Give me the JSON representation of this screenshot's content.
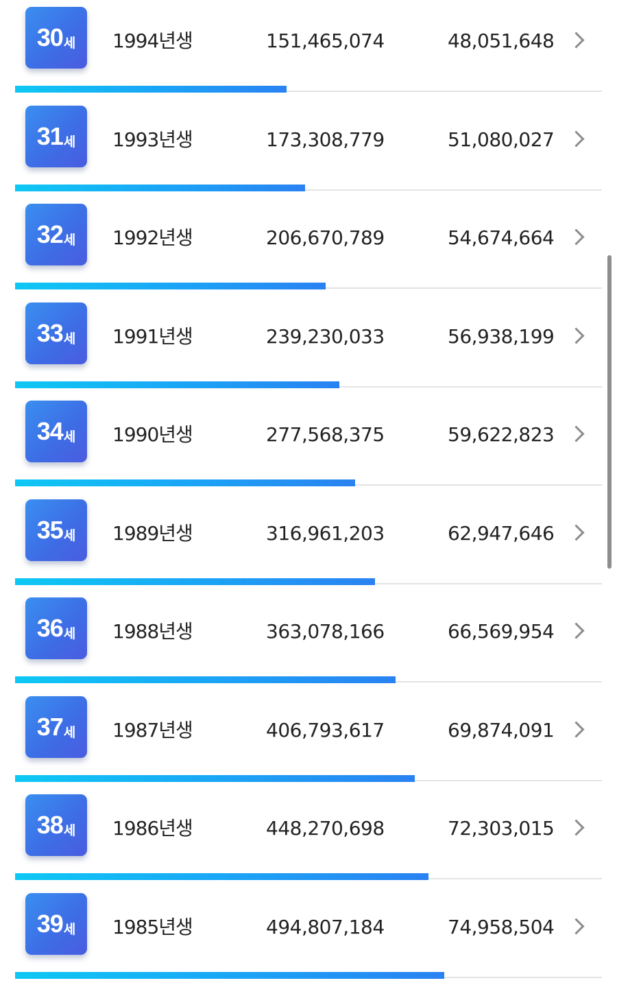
{
  "unit_label": "세",
  "rows": [
    {
      "age": "30",
      "birth_year": "1994년생",
      "total": "151,465,074",
      "annual": "48,051,648",
      "bar_fraction": 0.463
    },
    {
      "age": "31",
      "birth_year": "1993년생",
      "total": "173,308,779",
      "annual": "51,080,027",
      "bar_fraction": 0.494
    },
    {
      "age": "32",
      "birth_year": "1992년생",
      "total": "206,670,789",
      "annual": "54,674,664",
      "bar_fraction": 0.529
    },
    {
      "age": "33",
      "birth_year": "1991년생",
      "total": "239,230,033",
      "annual": "56,938,199",
      "bar_fraction": 0.553
    },
    {
      "age": "34",
      "birth_year": "1990년생",
      "total": "277,568,375",
      "annual": "59,622,823",
      "bar_fraction": 0.58
    },
    {
      "age": "35",
      "birth_year": "1989년생",
      "total": "316,961,203",
      "annual": "62,947,646",
      "bar_fraction": 0.613
    },
    {
      "age": "36",
      "birth_year": "1988년생",
      "total": "363,078,166",
      "annual": "66,569,954",
      "bar_fraction": 0.648
    },
    {
      "age": "37",
      "birth_year": "1987년생",
      "total": "406,793,617",
      "annual": "69,874,091",
      "bar_fraction": 0.681
    },
    {
      "age": "38",
      "birth_year": "1986년생",
      "total": "448,270,698",
      "annual": "72,303,015",
      "bar_fraction": 0.705
    },
    {
      "age": "39",
      "birth_year": "1985년생",
      "total": "494,807,184",
      "annual": "74,958,504",
      "bar_fraction": 0.731
    }
  ],
  "icons": {
    "row_chevron": "chevron-right-icon"
  },
  "colors": {
    "badge_gradient_start": "#3a8ff0",
    "badge_gradient_end": "#4a5ce0",
    "bar_gradient_start": "#0ec8f4",
    "bar_gradient_end": "#2a82f2",
    "text": "#222222",
    "chevron": "#8c8c8c",
    "track": "#e3e3e3"
  }
}
